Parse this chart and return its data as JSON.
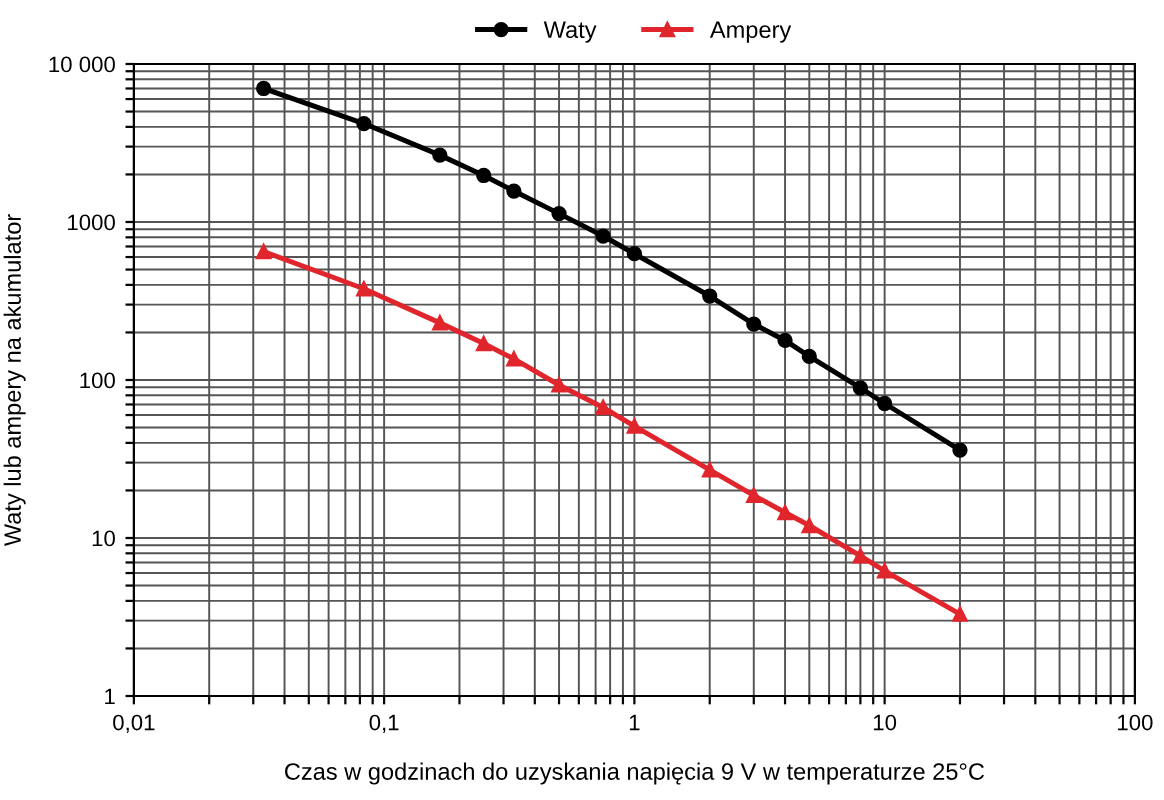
{
  "chart_data": {
    "type": "line",
    "xlabel": "Czas w godzinach do uzyskania napięcia 9 V w temperaturze 25°C",
    "ylabel": "Waty lub ampery na akumulator",
    "log": "xy",
    "grid": true,
    "legend": "top",
    "line_style": "solid",
    "xlim": [
      0.01,
      100
    ],
    "ylim": [
      1,
      10000
    ],
    "xticks": [
      {
        "value": 0.01,
        "label": "0,01"
      },
      {
        "value": 0.02,
        "label": null
      },
      {
        "value": 0.03,
        "label": null
      },
      {
        "value": 0.04,
        "label": null
      },
      {
        "value": 0.05,
        "label": null
      },
      {
        "value": 0.06,
        "label": null
      },
      {
        "value": 0.07,
        "label": null
      },
      {
        "value": 0.08,
        "label": null
      },
      {
        "value": 0.09,
        "label": null
      },
      {
        "value": 0.1,
        "label": "0,1"
      },
      {
        "value": 0.2,
        "label": null
      },
      {
        "value": 0.3,
        "label": null
      },
      {
        "value": 0.4,
        "label": null
      },
      {
        "value": 0.5,
        "label": null
      },
      {
        "value": 0.6,
        "label": null
      },
      {
        "value": 0.7,
        "label": null
      },
      {
        "value": 0.8,
        "label": null
      },
      {
        "value": 0.9,
        "label": null
      },
      1,
      {
        "value": 2,
        "label": null
      },
      {
        "value": 3,
        "label": null
      },
      {
        "value": 4,
        "label": null
      },
      {
        "value": 5,
        "label": null
      },
      {
        "value": 6,
        "label": null
      },
      {
        "value": 7,
        "label": null
      },
      {
        "value": 8,
        "label": null
      },
      {
        "value": 9,
        "label": null
      },
      10,
      {
        "value": 20,
        "label": null
      },
      {
        "value": 30,
        "label": null
      },
      {
        "value": 40,
        "label": null
      },
      {
        "value": 50,
        "label": null
      },
      {
        "value": 60,
        "label": null
      },
      {
        "value": 70,
        "label": null
      },
      {
        "value": 80,
        "label": null
      },
      {
        "value": 90,
        "label": null
      },
      100
    ],
    "yticks": [
      1,
      {
        "value": 2,
        "label": null
      },
      {
        "value": 3,
        "label": null
      },
      {
        "value": 4,
        "label": null
      },
      {
        "value": 5,
        "label": null
      },
      {
        "value": 6,
        "label": null
      },
      {
        "value": 7,
        "label": null
      },
      {
        "value": 8,
        "label": null
      },
      {
        "value": 9,
        "label": null
      },
      10,
      {
        "value": 20,
        "label": null
      },
      {
        "value": 30,
        "label": null
      },
      {
        "value": 40,
        "label": null
      },
      {
        "value": 50,
        "label": null
      },
      {
        "value": 60,
        "label": null
      },
      {
        "value": 70,
        "label": null
      },
      {
        "value": 80,
        "label": null
      },
      {
        "value": 90,
        "label": null
      },
      100,
      {
        "value": 200,
        "label": null
      },
      {
        "value": 300,
        "label": null
      },
      {
        "value": 400,
        "label": null
      },
      {
        "value": 500,
        "label": null
      },
      {
        "value": 600,
        "label": null
      },
      {
        "value": 700,
        "label": null
      },
      {
        "value": 800,
        "label": null
      },
      {
        "value": 900,
        "label": null
      },
      1000,
      {
        "value": 2000,
        "label": null
      },
      {
        "value": 3000,
        "label": null
      },
      {
        "value": 4000,
        "label": null
      },
      {
        "value": 5000,
        "label": null
      },
      {
        "value": 6000,
        "label": null
      },
      {
        "value": 7000,
        "label": null
      },
      {
        "value": 8000,
        "label": null
      },
      {
        "value": 9000,
        "label": null
      },
      {
        "value": 10000,
        "label": "10 000"
      }
    ],
    "x": [
      0.033,
      0.083,
      0.167,
      0.25,
      0.33,
      0.5,
      0.75,
      1,
      2,
      3,
      4,
      5,
      8,
      10,
      20
    ],
    "series": [
      {
        "name": "Waty",
        "color": "#000000",
        "marker": "circle",
        "values": [
          7000,
          4200,
          2650,
          1970,
          1570,
          1130,
          815,
          630,
          340,
          226,
          178,
          141,
          89,
          71,
          36
        ]
      },
      {
        "name": "Ampery",
        "color": "#e0262c",
        "marker": "triangle",
        "values": [
          650,
          378,
          230,
          170,
          136,
          93,
          67,
          51,
          27,
          18.6,
          14.5,
          12,
          7.7,
          6.2,
          3.3
        ]
      }
    ]
  }
}
